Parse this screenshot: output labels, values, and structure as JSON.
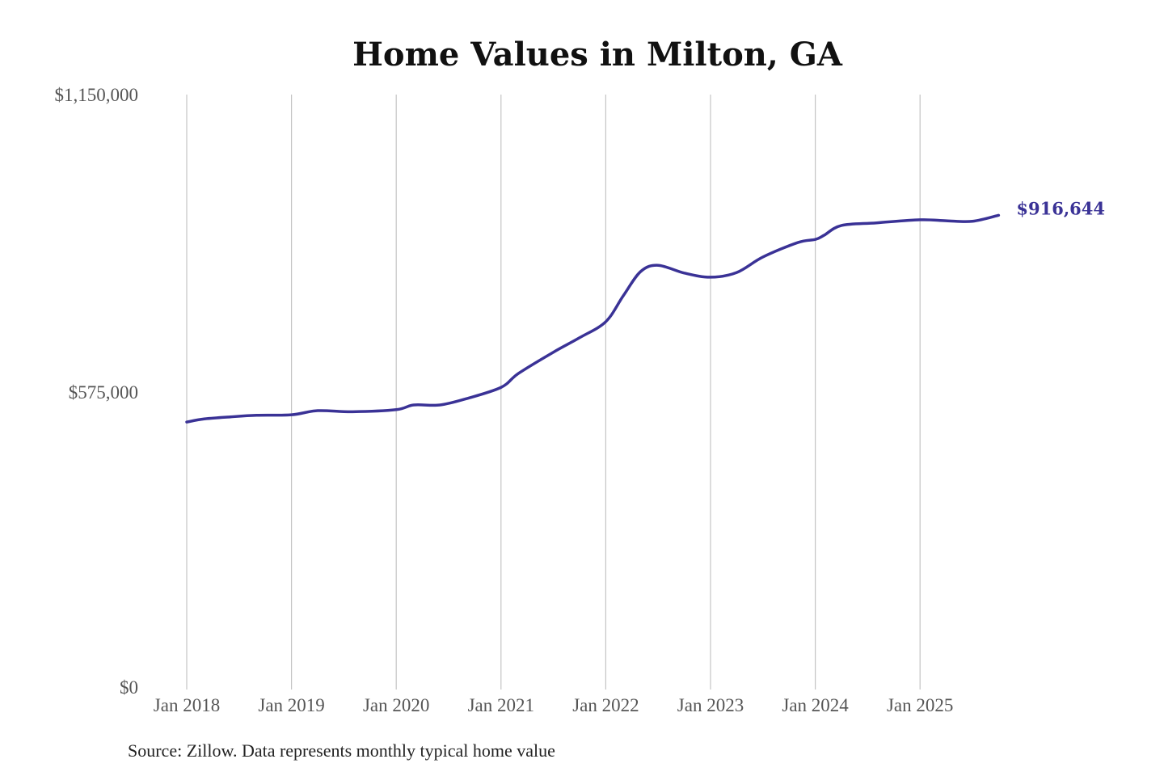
{
  "chart_data": {
    "type": "line",
    "title": "Home Values in Milton, GA",
    "source": "Source: Zillow. Data represents monthly typical home value",
    "xlabel": "",
    "ylabel": "",
    "ylim": [
      0,
      1150000
    ],
    "y_ticks": [
      0,
      575000,
      1150000
    ],
    "y_tick_labels": [
      "$0",
      "$575,000",
      "$1,150,000"
    ],
    "x_ticks": [
      "2018-01",
      "2019-01",
      "2020-01",
      "2021-01",
      "2022-01",
      "2023-01",
      "2024-01",
      "2025-01"
    ],
    "x_tick_labels": [
      "Jan 2018",
      "Jan 2019",
      "Jan 2020",
      "Jan 2021",
      "Jan 2022",
      "Jan 2023",
      "Jan 2024",
      "Jan 2025"
    ],
    "grid": "vertical",
    "line_color": "#3a3296",
    "end_label": "$916,644",
    "series": [
      {
        "points": [
          [
            "2018-01",
            517000
          ],
          [
            "2018-03",
            523000
          ],
          [
            "2018-06",
            527000
          ],
          [
            "2018-09",
            530000
          ],
          [
            "2019-01",
            531000
          ],
          [
            "2019-04",
            539000
          ],
          [
            "2019-08",
            537000
          ],
          [
            "2020-01",
            541000
          ],
          [
            "2020-03",
            550000
          ],
          [
            "2020-06",
            550000
          ],
          [
            "2020-09",
            562000
          ],
          [
            "2021-01",
            584000
          ],
          [
            "2021-03",
            611000
          ],
          [
            "2021-07",
            652000
          ],
          [
            "2021-10",
            680000
          ],
          [
            "2022-01",
            711000
          ],
          [
            "2022-03",
            761000
          ],
          [
            "2022-05",
            808000
          ],
          [
            "2022-07",
            820000
          ],
          [
            "2022-10",
            805000
          ],
          [
            "2023-01",
            797000
          ],
          [
            "2023-04",
            806000
          ],
          [
            "2023-07",
            836000
          ],
          [
            "2023-11",
            864000
          ],
          [
            "2024-01",
            870000
          ],
          [
            "2024-02",
            878000
          ],
          [
            "2024-04",
            897000
          ],
          [
            "2024-08",
            902000
          ],
          [
            "2025-01",
            908000
          ],
          [
            "2025-04",
            906000
          ],
          [
            "2025-07",
            905000
          ],
          [
            "2025-10",
            916644
          ]
        ]
      }
    ]
  }
}
